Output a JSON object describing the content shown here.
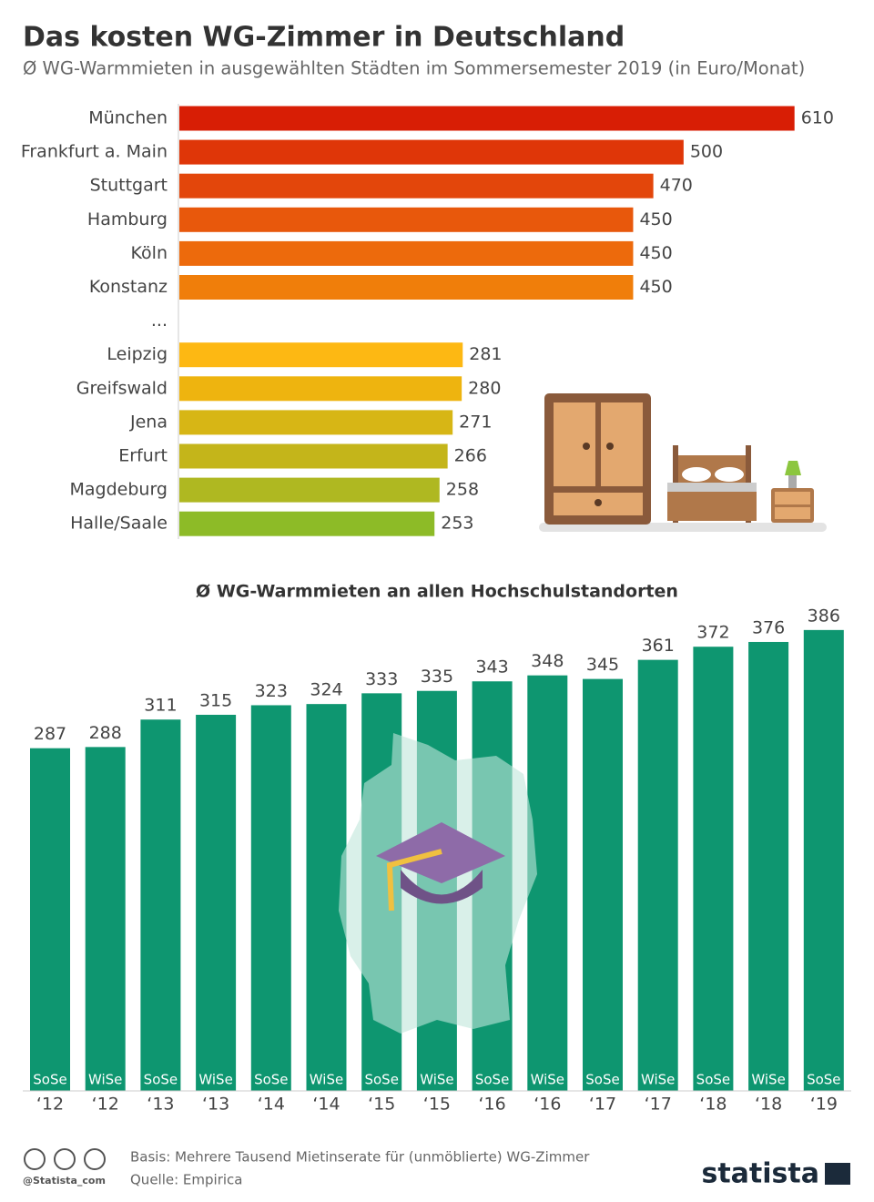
{
  "chart_data": [
    {
      "type": "bar",
      "orientation": "horizontal",
      "title": "Das kosten WG-Zimmer in Deutschland",
      "subtitle": "Ø WG-Warmmieten in ausgewählten Städten im Sommersemester 2019 (in Euro/Monat)",
      "categories": [
        "München",
        "Frankfurt a. Main",
        "Stuttgart",
        "Hamburg",
        "Köln",
        "Konstanz",
        "...",
        "Leipzig",
        "Greifswald",
        "Jena",
        "Erfurt",
        "Magdeburg",
        "Halle/Saale"
      ],
      "values": [
        610,
        500,
        470,
        450,
        450,
        450,
        null,
        281,
        280,
        271,
        266,
        258,
        253
      ],
      "colors": [
        "#d81e05",
        "#df3608",
        "#e3460b",
        "#e8580c",
        "#ed6a0c",
        "#f07e0a",
        null,
        "#fdb813",
        "#eeb40f",
        "#d7b615",
        "#c4b51a",
        "#afb821",
        "#8dbb27"
      ],
      "xlim": [
        0,
        650
      ]
    },
    {
      "type": "bar",
      "orientation": "vertical",
      "title": "Ø WG-Warmmieten an allen Hochschulstandorten",
      "semesters": [
        "SoSe",
        "WiSe",
        "SoSe",
        "WiSe",
        "SoSe",
        "WiSe",
        "SoSe",
        "WiSe",
        "SoSe",
        "WiSe",
        "SoSe",
        "WiSe",
        "SoSe",
        "WiSe",
        "SoSe"
      ],
      "categories": [
        "‘12",
        "‘12",
        "‘13",
        "‘13",
        "‘14",
        "‘14",
        "‘15",
        "‘15",
        "‘16",
        "‘16",
        "‘17",
        "‘17",
        "‘18",
        "‘18",
        "‘19"
      ],
      "values": [
        287,
        288,
        311,
        315,
        323,
        324,
        333,
        335,
        343,
        348,
        345,
        361,
        372,
        376,
        386
      ],
      "color": "#0e9670",
      "ylim": [
        0,
        400
      ]
    }
  ],
  "footer": {
    "basis": "Basis: Mehrere Tausend Mietinserate für (unmöblierte) WG-Zimmer",
    "source": "Quelle: Empirica",
    "handle": "@Statista_com",
    "brand": "statista"
  }
}
